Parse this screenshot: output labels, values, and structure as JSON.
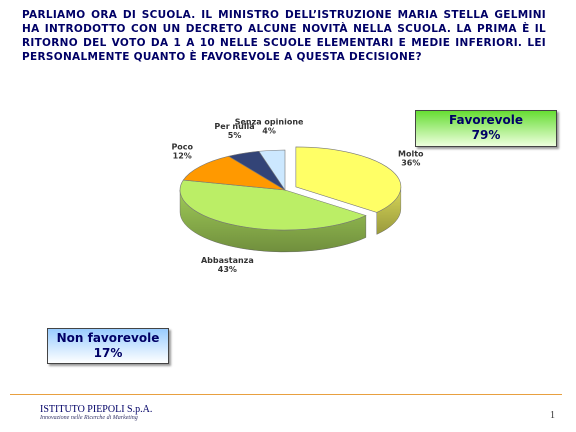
{
  "title": "PARLIAMO ORA DI SCUOLA. IL MINISTRO DELL’ISTRUZIONE MARIA STELLA GELMINI HA INTRODOTTO CON UN DECRETO ALCUNE NOVITÀ NELLA SCUOLA. LA PRIMA È IL RITORNO DEL VOTO DA 1 A 10 NELLE SCUOLE ELEMENTARI E MEDIE INFERIORI. LEI PERSONALMENTE QUANTO È FAVOREVOLE A QUESTA DECISIONE?",
  "chart_data": {
    "type": "pie",
    "categories": [
      "Molto",
      "Abbastanza",
      "Poco",
      "Per nulla",
      "Senza opinione"
    ],
    "values": [
      36,
      43,
      12,
      5,
      4
    ],
    "value_labels": [
      "36%",
      "43%",
      "12%",
      "5%",
      "4%"
    ],
    "colors": [
      "#ffff66",
      "#bbee66",
      "#ff9900",
      "#334477",
      "#cce8ff"
    ]
  },
  "summary": [
    {
      "label": "Favorevole",
      "value": 79,
      "value_label": "79%"
    },
    {
      "label": "Non favorevole",
      "value": 17,
      "value_label": "17%"
    }
  ],
  "footer": {
    "company": "ISTITUTO PIEPOLI S.p.A.",
    "tagline": "Innovazione nelle Ricerche di Marketing",
    "page_number": 1
  }
}
